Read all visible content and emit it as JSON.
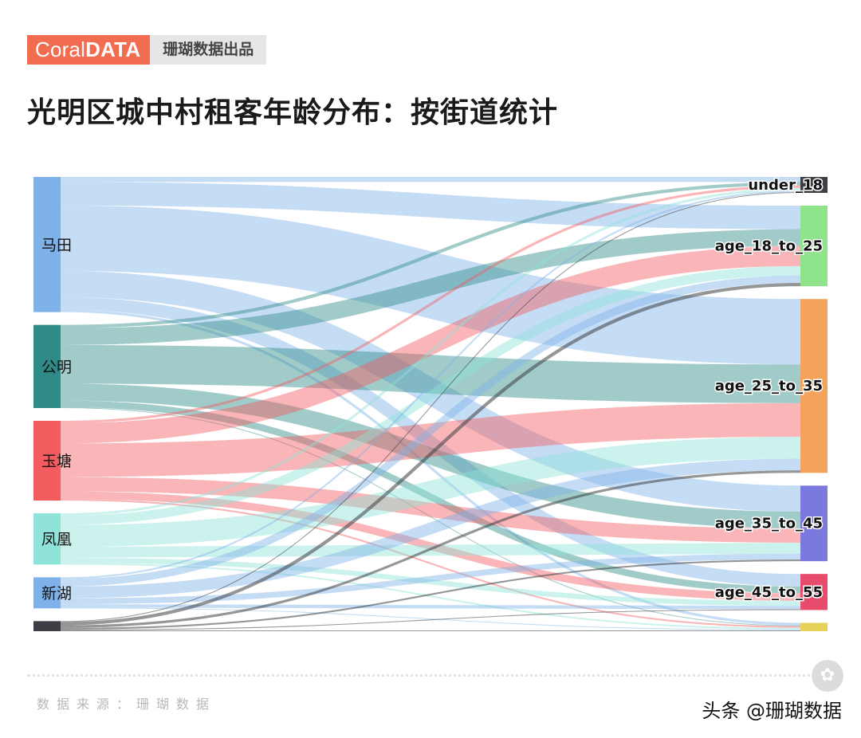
{
  "brand": {
    "logo_light": "Coral",
    "logo_bold": "DATA",
    "subtitle": "珊瑚数据出品"
  },
  "title": "光明区城中村租客年龄分布：按街道统计",
  "footer": {
    "source": "数据来源：珊瑚数据",
    "credit": "头条 @珊瑚数据"
  },
  "colors": {
    "street": [
      "#7fb2e8",
      "#2e8b87",
      "#f25c5f",
      "#8fe3d8",
      "#7fb2e8",
      "#3e3f44"
    ],
    "age": [
      "#3e3f44",
      "#8fe38a",
      "#f5a35c",
      "#7b78de",
      "#e84c6c",
      "#e6d25a"
    ]
  },
  "chart_data": {
    "type": "sankey",
    "title": "光明区城中村租客年龄分布：按街道统计",
    "sources": [
      "马田",
      "公明",
      "玉塘",
      "凤凰",
      "新湖",
      ""
    ],
    "targets": [
      "under_18",
      "age_18_to_25",
      "age_25_to_35",
      "age_35_to_45",
      "age_45_to_55",
      ""
    ],
    "links": [
      [
        6,
        28,
        78,
        31,
        15,
        3
      ],
      [
        4,
        20,
        46,
        20,
        8,
        1
      ],
      [
        3,
        24,
        40,
        17,
        9,
        2
      ],
      [
        3,
        11,
        26,
        13,
        6,
        2
      ],
      [
        2,
        9,
        14,
        7,
        4,
        1
      ],
      [
        1,
        4,
        3,
        2,
        1,
        1
      ]
    ]
  }
}
